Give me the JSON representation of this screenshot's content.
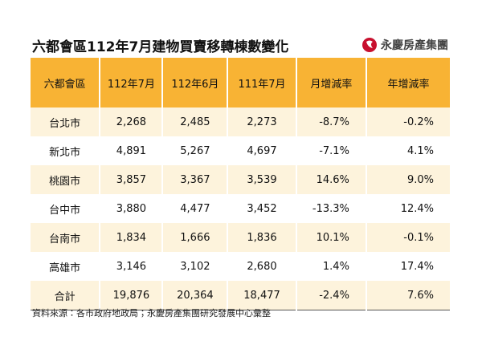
{
  "header": {
    "title": "六都會區112年7月建物買賣移轉棟數變化",
    "brand": "永慶房產集團"
  },
  "table": {
    "columns": [
      "六都會區",
      "112年7月",
      "112年6月",
      "111年7月",
      "月增減率",
      "年增減率"
    ],
    "rows": [
      [
        "台北市",
        "2,268",
        "2,485",
        "2,273",
        "-8.7%",
        "-0.2%"
      ],
      [
        "新北市",
        "4,891",
        "5,267",
        "4,697",
        "-7.1%",
        "4.1%"
      ],
      [
        "桃園市",
        "3,857",
        "3,367",
        "3,539",
        "14.6%",
        "9.0%"
      ],
      [
        "台中市",
        "3,880",
        "4,477",
        "3,452",
        "-13.3%",
        "12.4%"
      ],
      [
        "台南市",
        "1,834",
        "1,666",
        "1,836",
        "10.1%",
        "-0.1%"
      ],
      [
        "高雄市",
        "3,146",
        "3,102",
        "2,680",
        "1.4%",
        "17.4%"
      ],
      [
        "合計",
        "19,876",
        "20,364",
        "18,477",
        "-2.4%",
        "7.6%"
      ]
    ]
  },
  "footer": {
    "source": "資料來源：各市政府地政局；永慶房產集團研究發展中心彙整"
  }
}
